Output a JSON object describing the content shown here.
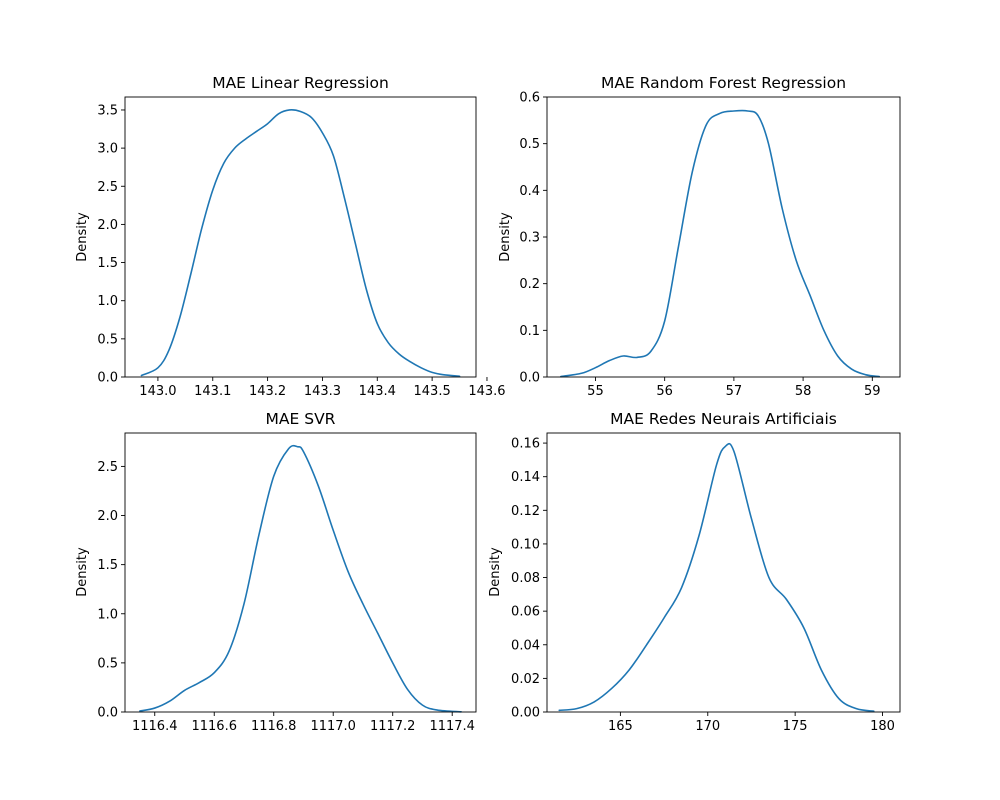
{
  "chart_data": [
    {
      "type": "line",
      "title": "MAE Linear Regression",
      "xlabel": "",
      "ylabel": "Density",
      "xlim": [
        142.94,
        143.58
      ],
      "ylim": [
        0,
        3.67
      ],
      "xticks": [
        143.0,
        143.1,
        143.2,
        143.3,
        143.4,
        143.5,
        143.6
      ],
      "xtick_labels": [
        "143.0",
        "143.1",
        "143.2",
        "143.3",
        "143.4",
        "143.5",
        "143.6"
      ],
      "yticks": [
        0,
        0.5,
        1.0,
        1.5,
        2.0,
        2.5,
        3.0,
        3.5
      ],
      "ytick_labels": [
        "0.0",
        "0.5",
        "1.0",
        "1.5",
        "2.0",
        "2.5",
        "3.0",
        "3.5"
      ],
      "grid": false,
      "color": "#1f77b4",
      "series": [
        {
          "x": [
            142.97,
            143.0,
            143.02,
            143.04,
            143.06,
            143.08,
            143.1,
            143.12,
            143.14,
            143.16,
            143.18,
            143.2,
            143.22,
            143.24,
            143.26,
            143.28,
            143.3,
            143.32,
            143.34,
            143.36,
            143.38,
            143.4,
            143.42,
            143.44,
            143.46,
            143.48,
            143.5,
            143.52,
            143.55
          ],
          "y": [
            0.02,
            0.12,
            0.35,
            0.78,
            1.35,
            1.95,
            2.45,
            2.8,
            3.0,
            3.12,
            3.22,
            3.32,
            3.45,
            3.5,
            3.48,
            3.4,
            3.2,
            2.9,
            2.35,
            1.75,
            1.15,
            0.7,
            0.45,
            0.3,
            0.2,
            0.12,
            0.06,
            0.03,
            0.01
          ]
        }
      ]
    },
    {
      "type": "line",
      "title": "MAE Random Forest Regression",
      "xlabel": "",
      "ylabel": "Density",
      "xlim": [
        54.3,
        59.4
      ],
      "ylim": [
        0,
        0.6
      ],
      "xticks": [
        55,
        56,
        57,
        58,
        59
      ],
      "xtick_labels": [
        "55",
        "56",
        "57",
        "58",
        "59"
      ],
      "yticks": [
        0,
        0.1,
        0.2,
        0.3,
        0.4,
        0.5,
        0.6
      ],
      "ytick_labels": [
        "0.0",
        "0.1",
        "0.2",
        "0.3",
        "0.4",
        "0.5",
        "0.6"
      ],
      "grid": false,
      "color": "#1f77b4",
      "series": [
        {
          "x": [
            54.5,
            54.8,
            55.0,
            55.2,
            55.4,
            55.6,
            55.8,
            56.0,
            56.2,
            56.4,
            56.6,
            56.8,
            57.0,
            57.2,
            57.35,
            57.5,
            57.7,
            57.9,
            58.1,
            58.3,
            58.5,
            58.7,
            58.9,
            59.1
          ],
          "y": [
            0.001,
            0.008,
            0.02,
            0.035,
            0.045,
            0.042,
            0.055,
            0.12,
            0.28,
            0.44,
            0.54,
            0.565,
            0.57,
            0.57,
            0.56,
            0.5,
            0.36,
            0.25,
            0.175,
            0.1,
            0.045,
            0.017,
            0.005,
            0.001
          ]
        }
      ]
    },
    {
      "type": "line",
      "title": "MAE SVR",
      "xlabel": "",
      "ylabel": "Density",
      "xlim": [
        1116.3,
        1117.48
      ],
      "ylim": [
        0,
        2.84
      ],
      "xticks": [
        1116.4,
        1116.6,
        1116.8,
        1117.0,
        1117.2,
        1117.4
      ],
      "xtick_labels": [
        "1116.4",
        "1116.6",
        "1116.8",
        "1117.0",
        "1117.2",
        "1117.4"
      ],
      "yticks": [
        0,
        0.5,
        1.0,
        1.5,
        2.0,
        2.5
      ],
      "ytick_labels": [
        "0.0",
        "0.5",
        "1.0",
        "1.5",
        "2.0",
        "2.5"
      ],
      "grid": false,
      "color": "#1f77b4",
      "series": [
        {
          "x": [
            1116.35,
            1116.4,
            1116.45,
            1116.5,
            1116.55,
            1116.6,
            1116.65,
            1116.7,
            1116.75,
            1116.8,
            1116.85,
            1116.88,
            1116.9,
            1116.95,
            1117.0,
            1117.05,
            1117.1,
            1117.15,
            1117.2,
            1117.25,
            1117.3,
            1117.35,
            1117.43
          ],
          "y": [
            0.01,
            0.04,
            0.11,
            0.22,
            0.3,
            0.4,
            0.62,
            1.1,
            1.8,
            2.4,
            2.68,
            2.7,
            2.65,
            2.3,
            1.85,
            1.43,
            1.1,
            0.8,
            0.5,
            0.23,
            0.07,
            0.02,
            0.002
          ]
        }
      ]
    },
    {
      "type": "line",
      "title": "MAE Redes Neurais Artificiais",
      "xlabel": "",
      "ylabel": "Density",
      "xlim": [
        160.8,
        181.0
      ],
      "ylim": [
        0,
        0.166
      ],
      "xticks": [
        165,
        170,
        175,
        180
      ],
      "xtick_labels": [
        "165",
        "170",
        "175",
        "180"
      ],
      "yticks": [
        0,
        0.02,
        0.04,
        0.06,
        0.08,
        0.1,
        0.12,
        0.14,
        0.16
      ],
      "ytick_labels": [
        "0.00",
        "0.02",
        "0.04",
        "0.06",
        "0.08",
        "0.10",
        "0.12",
        "0.14",
        "0.16"
      ],
      "grid": false,
      "color": "#1f77b4",
      "series": [
        {
          "x": [
            161.5,
            162.5,
            163.5,
            164.5,
            165.5,
            166.5,
            167.5,
            168.5,
            169.5,
            170.5,
            171.0,
            171.5,
            172.5,
            173.5,
            174.5,
            175.5,
            176.5,
            177.5,
            178.5,
            179.5
          ],
          "y": [
            0.001,
            0.002,
            0.006,
            0.014,
            0.025,
            0.04,
            0.056,
            0.074,
            0.105,
            0.147,
            0.158,
            0.155,
            0.115,
            0.08,
            0.067,
            0.05,
            0.025,
            0.008,
            0.002,
            0.0005
          ]
        }
      ]
    }
  ]
}
